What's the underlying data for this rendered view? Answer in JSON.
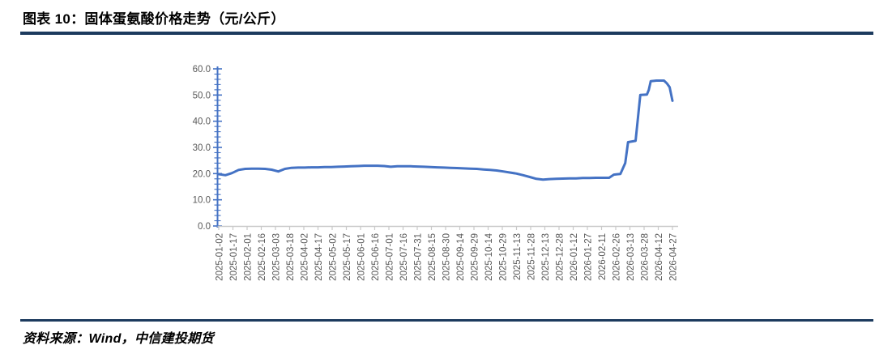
{
  "page": {
    "accent_rule_color": "#1c3a5e",
    "background_color": "#ffffff"
  },
  "header": {
    "title": "图表 10：固体蛋氨酸价格走势（元/公斤）"
  },
  "footer": {
    "source": "资料来源：Wind，中信建投期货"
  },
  "chart_data": {
    "type": "line",
    "title": "固体蛋氨酸价格走势（元/公斤）",
    "xlabel": "",
    "ylabel": "",
    "unit": "元/公斤",
    "grid": false,
    "legend_position": "none",
    "line_color": "#4472C4",
    "axis_color": "#4472C4",
    "x_axis_color": "#c9c9c9",
    "tick_label_color": "#595959",
    "ylim": [
      0,
      60
    ],
    "ytick_values": [
      0,
      10,
      20,
      30,
      40,
      50,
      60
    ],
    "ytick_labels": [
      "0.0",
      "10.0",
      "20.0",
      "30.0",
      "40.0",
      "50.0",
      "60.0"
    ],
    "y_minor_tick_step": 2,
    "x_range": [
      "2025-01-02",
      "2026-04-27"
    ],
    "xtick_labels": [
      "2025-01-02",
      "2025-01-17",
      "2025-02-01",
      "2025-02-16",
      "2025-03-03",
      "2025-03-18",
      "2025-04-02",
      "2025-04-17",
      "2025-05-02",
      "2025-05-17",
      "2025-06-01",
      "2025-06-16",
      "2025-07-01",
      "2025-07-16",
      "2025-07-31",
      "2025-08-15",
      "2025-08-30",
      "2025-09-14",
      "2025-09-29",
      "2025-10-14",
      "2025-10-29",
      "2025-11-13",
      "2025-11-28",
      "2025-12-13",
      "2025-12-28",
      "2026-01-12",
      "2026-01-27",
      "2026-02-11",
      "2026-02-26",
      "2026-03-13",
      "2026-03-28",
      "2026-04-12",
      "2026-04-27"
    ],
    "series": [
      {
        "name": "固体蛋氨酸价格",
        "points": [
          [
            "2025-01-02",
            19.8
          ],
          [
            "2025-01-09",
            19.4
          ],
          [
            "2025-01-16",
            20.2
          ],
          [
            "2025-01-23",
            21.4
          ],
          [
            "2025-01-30",
            21.8
          ],
          [
            "2025-02-06",
            21.9
          ],
          [
            "2025-02-13",
            21.9
          ],
          [
            "2025-02-20",
            21.8
          ],
          [
            "2025-02-27",
            21.5
          ],
          [
            "2025-03-06",
            20.8
          ],
          [
            "2025-03-13",
            21.8
          ],
          [
            "2025-03-20",
            22.2
          ],
          [
            "2025-03-27",
            22.3
          ],
          [
            "2025-04-03",
            22.3
          ],
          [
            "2025-04-10",
            22.4
          ],
          [
            "2025-04-17",
            22.4
          ],
          [
            "2025-04-24",
            22.5
          ],
          [
            "2025-05-01",
            22.5
          ],
          [
            "2025-05-08",
            22.6
          ],
          [
            "2025-05-15",
            22.7
          ],
          [
            "2025-05-22",
            22.8
          ],
          [
            "2025-05-29",
            22.9
          ],
          [
            "2025-06-05",
            23.0
          ],
          [
            "2025-06-12",
            23.0
          ],
          [
            "2025-06-19",
            23.0
          ],
          [
            "2025-06-26",
            22.9
          ],
          [
            "2025-07-03",
            22.6
          ],
          [
            "2025-07-10",
            22.8
          ],
          [
            "2025-07-17",
            22.8
          ],
          [
            "2025-07-24",
            22.8
          ],
          [
            "2025-07-31",
            22.7
          ],
          [
            "2025-08-07",
            22.6
          ],
          [
            "2025-08-14",
            22.5
          ],
          [
            "2025-08-21",
            22.4
          ],
          [
            "2025-08-28",
            22.3
          ],
          [
            "2025-09-04",
            22.2
          ],
          [
            "2025-09-11",
            22.1
          ],
          [
            "2025-09-18",
            22.0
          ],
          [
            "2025-09-25",
            21.9
          ],
          [
            "2025-10-02",
            21.8
          ],
          [
            "2025-10-09",
            21.6
          ],
          [
            "2025-10-16",
            21.4
          ],
          [
            "2025-10-23",
            21.2
          ],
          [
            "2025-10-30",
            20.8
          ],
          [
            "2025-11-06",
            20.4
          ],
          [
            "2025-11-13",
            20.0
          ],
          [
            "2025-11-20",
            19.4
          ],
          [
            "2025-11-27",
            18.7
          ],
          [
            "2025-12-04",
            18.0
          ],
          [
            "2025-12-11",
            17.7
          ],
          [
            "2025-12-18",
            17.9
          ],
          [
            "2025-12-25",
            18.0
          ],
          [
            "2026-01-01",
            18.1
          ],
          [
            "2026-01-08",
            18.2
          ],
          [
            "2026-01-15",
            18.2
          ],
          [
            "2026-01-22",
            18.3
          ],
          [
            "2026-01-29",
            18.3
          ],
          [
            "2026-02-05",
            18.4
          ],
          [
            "2026-02-12",
            18.4
          ],
          [
            "2026-02-19",
            18.4
          ],
          [
            "2026-02-24",
            19.6
          ],
          [
            "2026-03-03",
            19.9
          ],
          [
            "2026-03-08",
            24.0
          ],
          [
            "2026-03-11",
            32.0
          ],
          [
            "2026-03-19",
            32.5
          ],
          [
            "2026-03-24",
            50.0
          ],
          [
            "2026-03-31",
            50.2
          ],
          [
            "2026-04-02",
            52.0
          ],
          [
            "2026-04-04",
            55.3
          ],
          [
            "2026-04-10",
            55.5
          ],
          [
            "2026-04-18",
            55.5
          ],
          [
            "2026-04-21",
            54.5
          ],
          [
            "2026-04-24",
            53.0
          ],
          [
            "2026-04-27",
            47.8
          ]
        ]
      }
    ]
  }
}
